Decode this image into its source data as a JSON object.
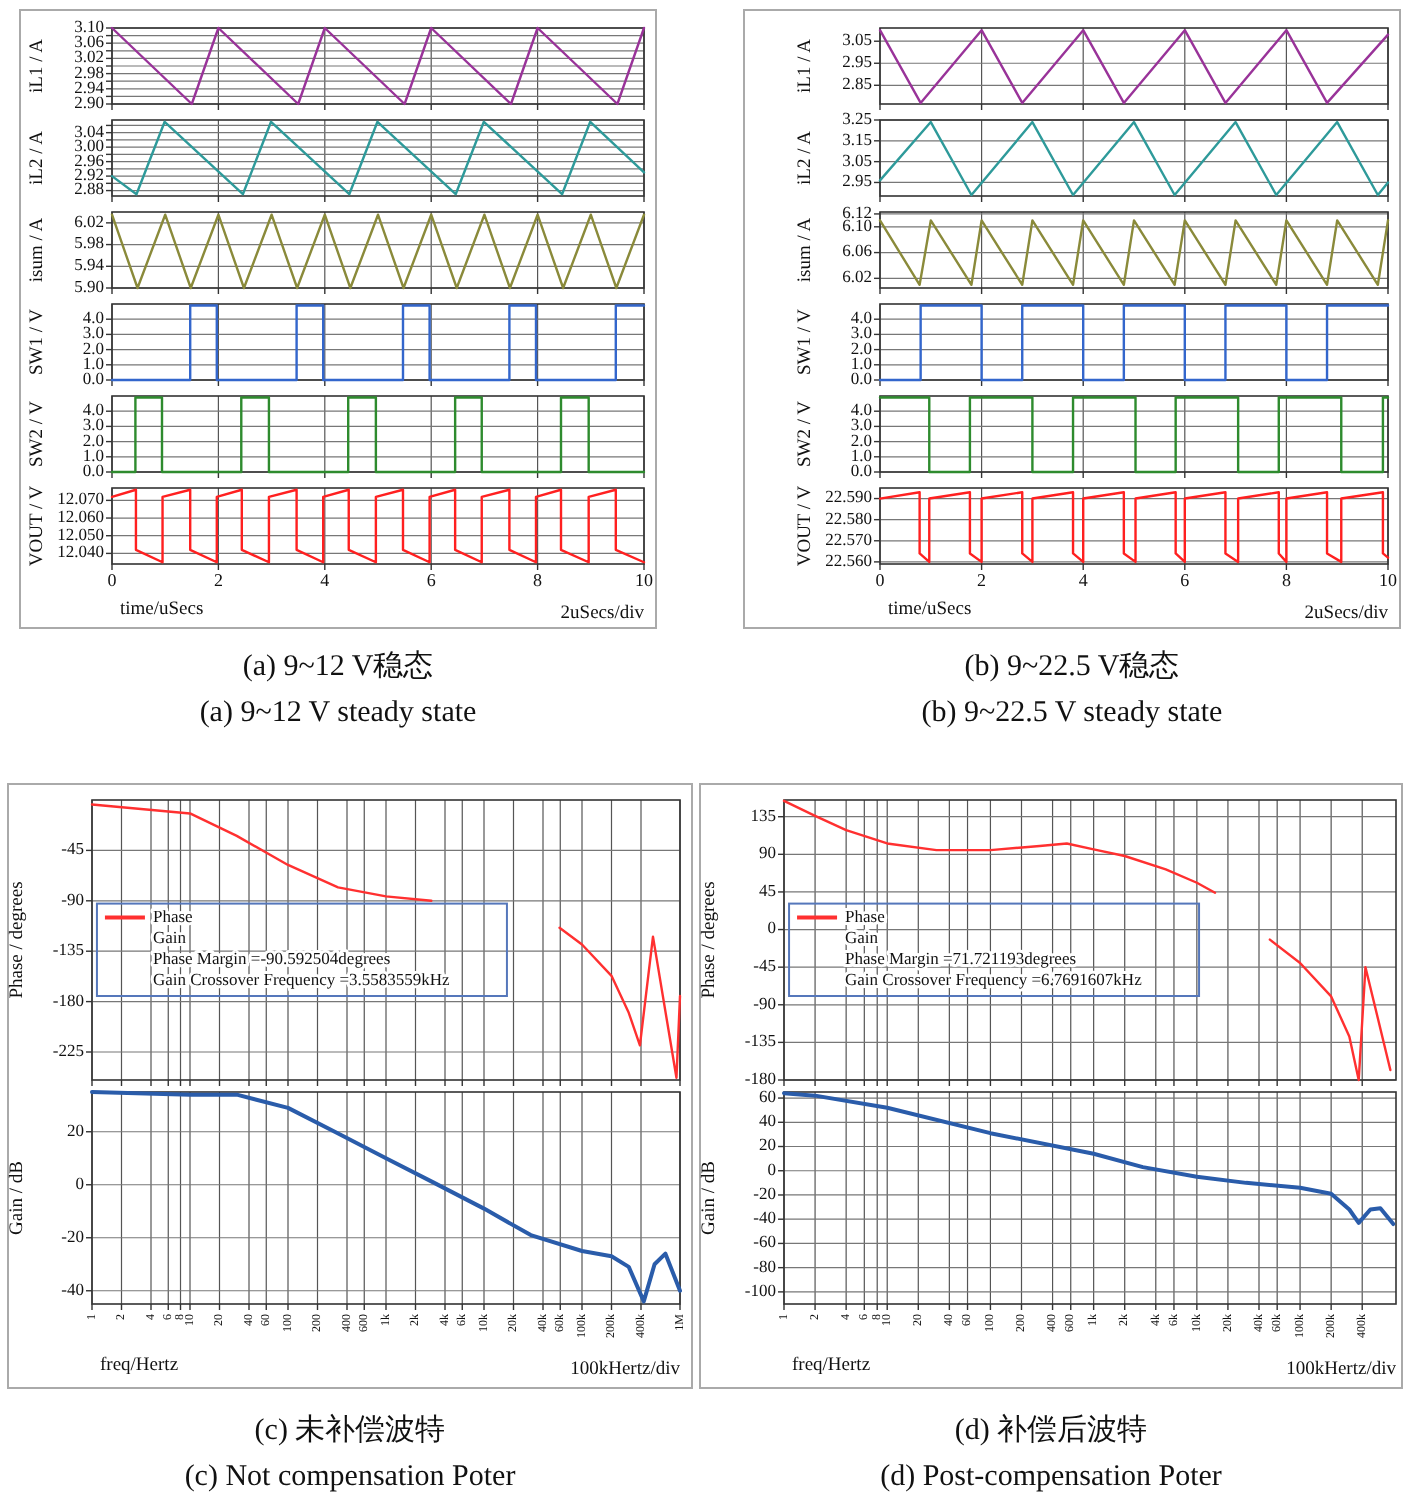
{
  "chart_data": [
    {
      "type": "line",
      "ylabel": "iL1 / A",
      "x": [
        0,
        1.5,
        2,
        3.5,
        4,
        5.5,
        6,
        7.5,
        8,
        9.5,
        10
      ],
      "series": [
        {
          "color": "#993399",
          "values": [
            3.1,
            2.9,
            3.1,
            2.9,
            3.1,
            2.9,
            3.1,
            2.9,
            3.1,
            2.9,
            3.1
          ]
        }
      ],
      "xlim": [
        0,
        10
      ],
      "xticks": [
        0,
        2,
        4,
        6,
        8,
        10
      ],
      "ylim": [
        2.9,
        3.1
      ],
      "yticks": [
        {
          "value": 2.9,
          "label": "2.90"
        },
        {
          "value": 2.92,
          "label": null
        },
        {
          "value": 2.94,
          "label": "2.94"
        },
        {
          "value": 2.96,
          "label": null
        },
        {
          "value": 2.98,
          "label": "2.98"
        },
        {
          "value": 3.0,
          "label": null
        },
        {
          "value": 3.02,
          "label": "3.02"
        },
        {
          "value": 3.04,
          "label": null
        },
        {
          "value": 3.06,
          "label": "3.06"
        },
        {
          "value": 3.08,
          "label": null
        },
        {
          "value": 3.1,
          "label": "3.10"
        }
      ],
      "grid": true,
      "tick_labels": "y"
    },
    {
      "type": "line",
      "ylabel": "iL2 / A",
      "x": [
        0,
        0.46,
        0.99,
        2.46,
        2.99,
        4.46,
        4.99,
        6.46,
        6.99,
        8.46,
        8.99,
        10
      ],
      "series": [
        {
          "color": "#2e9a9a",
          "values": [
            2.92,
            2.87,
            3.07,
            2.87,
            3.07,
            2.87,
            3.07,
            2.87,
            3.07,
            2.87,
            3.07,
            2.93
          ]
        }
      ],
      "xlim": [
        0,
        10
      ],
      "xticks": [
        0,
        2,
        4,
        6,
        8,
        10
      ],
      "ylim": [
        2.865,
        3.075
      ],
      "yticks": [
        {
          "value": 2.88,
          "label": "2.88"
        },
        {
          "value": 2.9,
          "label": null
        },
        {
          "value": 2.92,
          "label": "2.92"
        },
        {
          "value": 2.94,
          "label": null
        },
        {
          "value": 2.96,
          "label": "2.96"
        },
        {
          "value": 2.98,
          "label": null
        },
        {
          "value": 3.0,
          "label": "3.00"
        },
        {
          "value": 3.02,
          "label": null
        },
        {
          "value": 3.04,
          "label": "3.04"
        },
        {
          "value": 3.06,
          "label": null
        }
      ],
      "grid": true,
      "tick_labels": "y"
    },
    {
      "type": "line",
      "ylabel": "isum / A",
      "x": [
        0,
        0.48,
        1,
        1.48,
        2,
        2.48,
        3,
        3.48,
        4,
        4.48,
        5,
        5.48,
        6,
        6.48,
        7,
        7.48,
        8,
        8.48,
        9,
        9.48,
        10
      ],
      "series": [
        {
          "color": "#8a8a3a",
          "values": [
            6.035,
            5.9,
            6.035,
            5.9,
            6.035,
            5.9,
            6.035,
            5.9,
            6.035,
            5.9,
            6.035,
            5.9,
            6.035,
            5.9,
            6.035,
            5.9,
            6.035,
            5.9,
            6.035,
            5.9,
            6.035
          ]
        }
      ],
      "xlim": [
        0,
        10
      ],
      "xticks": [
        0,
        2,
        4,
        6,
        8,
        10
      ],
      "ylim": [
        5.9,
        6.04
      ],
      "yticks": [
        {
          "value": 5.9,
          "label": "5.90"
        },
        {
          "value": 5.94,
          "label": "5.94"
        },
        {
          "value": 5.98,
          "label": "5.98"
        },
        {
          "value": 6.02,
          "label": "6.02"
        }
      ],
      "grid": true,
      "tick_labels": "y"
    },
    {
      "type": "line",
      "ylabel": "SW1 / V",
      "x": [
        0,
        1.47,
        1.47,
        1.97,
        1.97,
        3.47,
        3.47,
        3.97,
        3.97,
        5.47,
        5.47,
        5.97,
        5.97,
        7.47,
        7.47,
        7.97,
        7.97,
        9.47,
        9.47,
        10
      ],
      "series": [
        {
          "color": "#3366cc",
          "values": [
            0,
            0,
            4.9,
            4.9,
            0,
            0,
            4.9,
            4.9,
            0,
            0,
            4.9,
            4.9,
            0,
            0,
            4.9,
            4.9,
            0,
            0,
            4.9,
            4.9
          ]
        }
      ],
      "xlim": [
        0,
        10
      ],
      "xticks": [
        0,
        2,
        4,
        6,
        8,
        10
      ],
      "ylim": [
        0,
        5
      ],
      "yticks": [
        {
          "value": 0,
          "label": "0.0"
        },
        {
          "value": 1,
          "label": "1.0"
        },
        {
          "value": 2,
          "label": "2.0"
        },
        {
          "value": 3,
          "label": "3.0"
        },
        {
          "value": 4,
          "label": "4.0"
        }
      ],
      "grid": true,
      "tick_labels": "y"
    },
    {
      "type": "line",
      "ylabel": "SW2 / V",
      "x": [
        0,
        0.44,
        0.44,
        0.94,
        0.94,
        2.43,
        2.43,
        2.95,
        2.95,
        4.44,
        4.44,
        4.96,
        4.96,
        6.45,
        6.45,
        6.95,
        6.95,
        8.44,
        8.44,
        8.96,
        8.96,
        10
      ],
      "series": [
        {
          "color": "#2e8b2e",
          "values": [
            0,
            0,
            4.9,
            4.9,
            0,
            0,
            4.9,
            4.9,
            0,
            0,
            4.9,
            4.9,
            0,
            0,
            4.9,
            4.9,
            0,
            0,
            4.9,
            4.9,
            0,
            0
          ]
        }
      ],
      "xlim": [
        0,
        10
      ],
      "xticks": [
        0,
        2,
        4,
        6,
        8,
        10
      ],
      "ylim": [
        0,
        5
      ],
      "yticks": [
        {
          "value": 0,
          "label": "0.0"
        },
        {
          "value": 1,
          "label": "1.0"
        },
        {
          "value": 2,
          "label": "2.0"
        },
        {
          "value": 3,
          "label": "3.0"
        },
        {
          "value": 4,
          "label": "4.0"
        }
      ],
      "grid": true,
      "tick_labels": "y"
    },
    {
      "type": "line",
      "ylabel": "VOUT / V",
      "xlabel": "time/uSecs",
      "x": [
        0,
        0.45,
        0.45,
        0.95,
        0.95,
        1.47,
        1.47,
        1.97,
        1.97,
        2.44,
        2.44,
        2.95,
        2.95,
        3.47,
        3.47,
        3.97,
        3.97,
        4.45,
        4.45,
        4.96,
        4.96,
        5.47,
        5.47,
        5.97,
        5.97,
        6.45,
        6.45,
        6.95,
        6.95,
        7.47,
        7.47,
        7.97,
        7.97,
        8.44,
        8.44,
        8.96,
        8.96,
        9.47,
        9.47,
        10
      ],
      "series": [
        {
          "color": "#ff2020",
          "values": [
            12.072,
            12.076,
            12.042,
            12.035,
            12.072,
            12.076,
            12.042,
            12.035,
            12.072,
            12.076,
            12.042,
            12.035,
            12.072,
            12.076,
            12.042,
            12.035,
            12.072,
            12.076,
            12.042,
            12.035,
            12.072,
            12.076,
            12.042,
            12.035,
            12.072,
            12.076,
            12.042,
            12.035,
            12.072,
            12.076,
            12.042,
            12.035,
            12.072,
            12.076,
            12.042,
            12.035,
            12.072,
            12.076,
            12.042,
            12.035
          ]
        }
      ],
      "xlim": [
        0,
        10
      ],
      "xticks": [
        0,
        2,
        4,
        6,
        8,
        10
      ],
      "ylim": [
        12.034,
        12.077
      ],
      "yticks": [
        {
          "value": 12.04,
          "label": "12.040"
        },
        {
          "value": 12.05,
          "label": "12.050"
        },
        {
          "value": 12.06,
          "label": "12.060"
        },
        {
          "value": 12.07,
          "label": "12.070"
        }
      ],
      "grid": true,
      "annotations": [
        "2uSecs/div",
        "(a) 9~12 V稳态",
        "(a) 9~12 V steady state"
      ]
    },
    {
      "type": "line",
      "ylabel": "iL1 / A",
      "x": [
        0,
        0.8,
        2,
        2.8,
        4,
        4.8,
        6,
        6.8,
        8,
        8.8,
        10
      ],
      "series": [
        {
          "color": "#993399",
          "values": [
            3.1,
            2.77,
            3.1,
            2.77,
            3.1,
            2.77,
            3.1,
            2.77,
            3.1,
            2.77,
            3.08
          ]
        }
      ],
      "xlim": [
        0,
        10
      ],
      "xticks": [
        0,
        2,
        4,
        6,
        8,
        10
      ],
      "ylim": [
        2.765,
        3.11
      ],
      "yticks": [
        2.85,
        2.95,
        3.05
      ],
      "grid": true,
      "tick_labels": "y"
    },
    {
      "type": "line",
      "ylabel": "iL2 / A",
      "x": [
        0,
        1,
        1.8,
        3,
        3.8,
        5,
        5.8,
        7,
        7.8,
        9,
        9.8,
        10
      ],
      "series": [
        {
          "color": "#2e9a9a",
          "values": [
            2.96,
            3.24,
            2.89,
            3.24,
            2.89,
            3.24,
            2.89,
            3.24,
            2.89,
            3.24,
            2.89,
            2.95
          ]
        }
      ],
      "xlim": [
        0,
        10
      ],
      "xticks": [
        0,
        2,
        4,
        6,
        8,
        10
      ],
      "ylim": [
        2.885,
        3.25
      ],
      "yticks": [
        2.95,
        3.05,
        3.15,
        3.25
      ],
      "grid": true,
      "tick_labels": "y"
    },
    {
      "type": "line",
      "ylabel": "isum / A",
      "x": [
        0,
        0.78,
        1,
        1.8,
        2,
        2.8,
        3,
        3.8,
        4,
        4.8,
        5,
        5.8,
        6,
        6.8,
        7,
        7.8,
        8,
        8.8,
        9,
        9.8,
        10
      ],
      "series": [
        {
          "color": "#8a8a3a",
          "values": [
            6.11,
            6.01,
            6.11,
            6.01,
            6.11,
            6.01,
            6.11,
            6.01,
            6.11,
            6.01,
            6.11,
            6.01,
            6.11,
            6.01,
            6.11,
            6.01,
            6.11,
            6.01,
            6.11,
            6.01,
            6.11
          ]
        }
      ],
      "xlim": [
        0,
        10
      ],
      "xticks": [
        0,
        2,
        4,
        6,
        8,
        10
      ],
      "ylim": [
        6.005,
        6.123
      ],
      "yticks": [
        6.02,
        6.06,
        {
          "value": 6.1,
          "label": "6.10"
        },
        6.12
      ],
      "grid": true,
      "tick_labels": "y"
    },
    {
      "type": "line",
      "ylabel": "SW1 / V",
      "x": [
        0,
        0.8,
        0.8,
        2,
        2,
        2.8,
        2.8,
        4,
        4,
        4.8,
        4.8,
        6,
        6,
        6.8,
        6.8,
        8,
        8,
        8.8,
        8.8,
        10
      ],
      "series": [
        {
          "color": "#3366cc",
          "values": [
            0,
            0,
            4.9,
            4.9,
            0,
            0,
            4.9,
            4.9,
            0,
            0,
            4.9,
            4.9,
            0,
            0,
            4.9,
            4.9,
            0,
            0,
            4.9,
            4.9
          ]
        }
      ],
      "xlim": [
        0,
        10
      ],
      "xticks": [
        0,
        2,
        4,
        6,
        8,
        10
      ],
      "ylim": [
        0,
        5
      ],
      "yticks": [
        {
          "value": 0,
          "label": "0.0"
        },
        {
          "value": 1,
          "label": "1.0"
        },
        {
          "value": 2,
          "label": "2.0"
        },
        {
          "value": 3,
          "label": "3.0"
        },
        {
          "value": 4,
          "label": "4.0"
        }
      ],
      "grid": true,
      "tick_labels": "y"
    },
    {
      "type": "line",
      "ylabel": "SW2 / V",
      "x": [
        0,
        0.97,
        0.97,
        1.77,
        1.77,
        3.0,
        3.0,
        3.8,
        3.8,
        5.03,
        5.03,
        5.82,
        5.82,
        7.05,
        7.05,
        7.85,
        7.85,
        9.08,
        9.08,
        9.9,
        9.9,
        10
      ],
      "series": [
        {
          "color": "#2e8b2e",
          "values": [
            4.9,
            4.9,
            0,
            0,
            4.9,
            4.9,
            0,
            0,
            4.9,
            4.9,
            0,
            0,
            4.9,
            4.9,
            0,
            0,
            4.9,
            4.9,
            0,
            0,
            4.9,
            4.9
          ]
        }
      ],
      "xlim": [
        0,
        10
      ],
      "xticks": [
        0,
        2,
        4,
        6,
        8,
        10
      ],
      "ylim": [
        0,
        5
      ],
      "yticks": [
        {
          "value": 0,
          "label": "0.0"
        },
        {
          "value": 1,
          "label": "1.0"
        },
        {
          "value": 2,
          "label": "2.0"
        },
        {
          "value": 3,
          "label": "3.0"
        },
        {
          "value": 4,
          "label": "4.0"
        }
      ],
      "grid": true,
      "tick_labels": "y"
    },
    {
      "type": "line",
      "ylabel": "VOUT / V",
      "xlabel": "time/uSecs",
      "x": [
        0,
        0.78,
        0.78,
        0.97,
        0.97,
        1.77,
        1.77,
        2.0,
        2.0,
        2.8,
        2.8,
        3.0,
        3.0,
        3.8,
        3.8,
        4.0,
        4.0,
        4.8,
        4.8,
        5.03,
        5.03,
        5.82,
        5.82,
        6.0,
        6.0,
        6.8,
        6.8,
        7.05,
        7.05,
        7.85,
        7.85,
        8.0,
        8.0,
        8.8,
        8.8,
        9.08,
        9.08,
        9.9,
        9.9,
        10
      ],
      "series": [
        {
          "color": "#ff2020",
          "values": [
            22.59,
            22.593,
            22.564,
            22.56,
            22.59,
            22.593,
            22.564,
            22.56,
            22.59,
            22.593,
            22.564,
            22.56,
            22.59,
            22.593,
            22.564,
            22.56,
            22.59,
            22.593,
            22.564,
            22.56,
            22.59,
            22.593,
            22.564,
            22.56,
            22.59,
            22.593,
            22.564,
            22.56,
            22.59,
            22.593,
            22.564,
            22.56,
            22.59,
            22.593,
            22.564,
            22.56,
            22.59,
            22.593,
            22.564,
            22.562
          ]
        }
      ],
      "xlim": [
        0,
        10
      ],
      "xticks": [
        0,
        2,
        4,
        6,
        8,
        10
      ],
      "ylim": [
        22.559,
        22.595
      ],
      "yticks": [
        {
          "value": 22.56,
          "label": "22.560"
        },
        {
          "value": 22.57,
          "label": "22.570"
        },
        {
          "value": 22.58,
          "label": "22.580"
        },
        {
          "value": 22.59,
          "label": "22.590"
        }
      ],
      "grid": true,
      "annotations": [
        "2uSecs/div",
        "(b) 9~22.5 V稳态",
        "(b) 9~22.5 V steady state"
      ]
    },
    {
      "type": "line",
      "ylabel": "Phase / degrees",
      "log": "x",
      "series": [
        {
          "name": "Phase",
          "color": "#ff3030",
          "x": [
            1,
            10,
            30,
            100,
            324,
            1000,
            2900
          ],
          "values": [
            -4,
            -12,
            -32,
            -58,
            -78,
            -86,
            -90
          ]
        },
        {
          "color": "#ff3030",
          "x": [
            59000,
            100000,
            200000,
            300000,
            390000,
            530000,
            920000,
            1000000
          ],
          "values": [
            -114,
            -129,
            -157,
            -190,
            -219,
            -122,
            -248,
            -175
          ]
        }
      ],
      "xlim": [
        1,
        1000000
      ],
      "xticks": [
        1,
        2,
        4,
        6,
        8,
        10,
        20,
        40,
        60,
        100,
        200,
        400,
        600,
        1000,
        2000,
        4000,
        6000,
        10000,
        20000,
        40000,
        60000,
        100000,
        200000,
        400000,
        1000000
      ],
      "ylim": [
        -250,
        0
      ],
      "yticks": [
        -225,
        -180,
        -135,
        -90,
        -45
      ],
      "grid": true,
      "tick_labels": "y",
      "legend": "left",
      "annotations": [
        "Gain",
        "Phase Margin =-90.592504degrees",
        "Gain Crossover Frequency =3.5583559kHz"
      ]
    },
    {
      "type": "line",
      "ylabel": "Gain / dB",
      "xlabel": "freq/Hertz",
      "log": "x",
      "x": [
        1,
        10,
        30,
        100,
        300,
        1000,
        3000,
        10000,
        30000,
        100000,
        200000,
        300000,
        427000,
        550000,
        710000,
        1000000
      ],
      "series": [
        {
          "color": "#2a5caa",
          "values": [
            35,
            34,
            34,
            29,
            20,
            10,
            1,
            -9,
            -19,
            -25,
            -27,
            -31,
            -44,
            -30,
            -26,
            -40
          ]
        }
      ],
      "xlim": [
        1,
        1000000
      ],
      "xticks": [
        1,
        2,
        4,
        6,
        8,
        10,
        20,
        40,
        60,
        100,
        200,
        400,
        600,
        {
          "value": 1000,
          "label": "1k"
        },
        {
          "value": 2000,
          "label": "2k"
        },
        {
          "value": 4000,
          "label": "4k"
        },
        {
          "value": 6000,
          "label": "6k"
        },
        {
          "value": 10000,
          "label": "10k"
        },
        {
          "value": 20000,
          "label": "20k"
        },
        {
          "value": 40000,
          "label": "40k"
        },
        {
          "value": 60000,
          "label": "60k"
        },
        {
          "value": 100000,
          "label": "100k"
        },
        {
          "value": 200000,
          "label": "200k"
        },
        {
          "value": 400000,
          "label": "400k"
        },
        {
          "value": 1000000,
          "label": "1M"
        }
      ],
      "ylim": [
        -45,
        35
      ],
      "yticks": [
        -40,
        -20,
        0,
        20
      ],
      "grid": true,
      "annotations": [
        "100kHertz/div",
        "(c) 未补偿波特",
        "(c) Not compensation Poter"
      ]
    },
    {
      "type": "line",
      "ylabel": "Phase / degrees",
      "log": "x",
      "series": [
        {
          "name": "Phase",
          "color": "#ff3030",
          "x": [
            1,
            2,
            4,
            10,
            30,
            100,
            300,
            550,
            1000,
            2000,
            5000,
            10000,
            15000
          ],
          "values": [
            154,
            136,
            119,
            103,
            95,
            95,
            100,
            103,
            96,
            88,
            72,
            56,
            44
          ]
        },
        {
          "color": "#ff3030",
          "x": [
            51000,
            100000,
            200000,
            300000,
            370000,
            430000,
            750000
          ],
          "values": [
            -12,
            -40,
            -80,
            -128,
            -180,
            -45,
            -168
          ]
        }
      ],
      "xlim": [
        1,
        850000
      ],
      "xticks": [
        1,
        2,
        4,
        6,
        8,
        10,
        20,
        40,
        60,
        100,
        200,
        400,
        600,
        1000,
        2000,
        4000,
        6000,
        10000,
        20000,
        40000,
        60000,
        100000,
        200000,
        400000
      ],
      "ylim": [
        -180,
        155
      ],
      "yticks": [
        -180,
        -135,
        -90,
        -45,
        0,
        45,
        90,
        135
      ],
      "grid": true,
      "tick_labels": "y",
      "legend": "left",
      "annotations": [
        "Gain",
        "Phase Margin =71.721193degrees",
        "Gain Crossover Frequency =6.7691607kHz"
      ]
    },
    {
      "type": "line",
      "ylabel": "Gain / dB",
      "xlabel": "freq/Hertz",
      "log": "x",
      "x": [
        1,
        2,
        10,
        100,
        1000,
        3000,
        10000,
        30000,
        100000,
        200000,
        300000,
        370000,
        480000,
        600000,
        800000
      ],
      "series": [
        {
          "color": "#2a5caa",
          "values": [
            64,
            62,
            52,
            31,
            14,
            3,
            -5,
            -10,
            -14,
            -19,
            -32,
            -43,
            -32,
            -31,
            -44
          ]
        }
      ],
      "xlim": [
        1,
        850000
      ],
      "xticks": [
        1,
        2,
        4,
        6,
        8,
        10,
        20,
        40,
        60,
        100,
        200,
        400,
        600,
        {
          "value": 1000,
          "label": "1k"
        },
        {
          "value": 2000,
          "label": "2k"
        },
        {
          "value": 4000,
          "label": "4k"
        },
        {
          "value": 6000,
          "label": "6k"
        },
        {
          "value": 10000,
          "label": "10k"
        },
        {
          "value": 20000,
          "label": "20k"
        },
        {
          "value": 40000,
          "label": "40k"
        },
        {
          "value": 60000,
          "label": "60k"
        },
        {
          "value": 100000,
          "label": "100k"
        },
        {
          "value": 200000,
          "label": "200k"
        },
        {
          "value": 400000,
          "label": "400k"
        }
      ],
      "ylim": [
        -110,
        65
      ],
      "yticks": [
        -100,
        -80,
        -60,
        -40,
        -20,
        0,
        20,
        40,
        60
      ],
      "grid": true,
      "annotations": [
        "100kHertz/div",
        "(d) 补偿后波特",
        "(d) Post-compensation Poter"
      ]
    }
  ]
}
